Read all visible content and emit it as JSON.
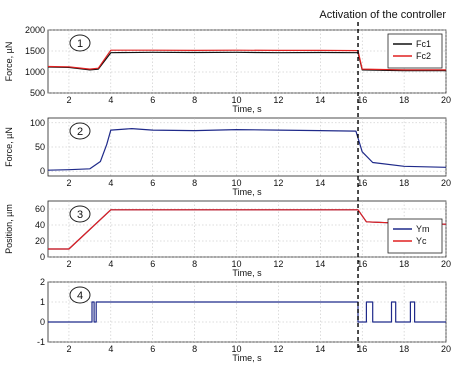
{
  "annotation": "Activation of the controller",
  "marker_color": "#000000",
  "chart_data": [
    {
      "type": "line",
      "badge": "1",
      "ylabel": "Force, µN",
      "xlabel": "Time, s",
      "xlim": [
        1,
        20
      ],
      "ylim": [
        500,
        2000
      ],
      "xticks": [
        2,
        4,
        6,
        8,
        10,
        12,
        14,
        16,
        18,
        20
      ],
      "yticks": [
        500,
        1000,
        1500,
        2000
      ],
      "grid": true,
      "legend": "top-right",
      "series": [
        {
          "name": "Fc1",
          "color": "#111111",
          "x": [
            1,
            2,
            3,
            3.4,
            4,
            6,
            8,
            10,
            12,
            14,
            15.8,
            16,
            18,
            20
          ],
          "y": [
            1120,
            1110,
            1050,
            1070,
            1460,
            1470,
            1465,
            1470,
            1460,
            1465,
            1460,
            1050,
            1030,
            1030
          ]
        },
        {
          "name": "Fc2",
          "color": "#e02020",
          "x": [
            1,
            2,
            3,
            3.4,
            4,
            6,
            8,
            10,
            12,
            14,
            15.8,
            16,
            18,
            20
          ],
          "y": [
            1130,
            1125,
            1070,
            1090,
            1520,
            1520,
            1515,
            1520,
            1515,
            1515,
            1510,
            1070,
            1050,
            1050
          ]
        }
      ]
    },
    {
      "type": "line",
      "badge": "2",
      "ylabel": "Force, µN",
      "xlabel": "Time, s",
      "xlim": [
        1,
        20
      ],
      "ylim": [
        -10,
        110
      ],
      "xticks": [
        2,
        4,
        6,
        8,
        10,
        12,
        14,
        16,
        18,
        20
      ],
      "yticks": [
        0,
        50,
        100
      ],
      "grid": true,
      "series": [
        {
          "color": "#1f2a8a",
          "x": [
            1,
            2,
            3,
            3.5,
            3.8,
            4,
            5,
            6,
            8,
            10,
            12,
            14,
            15.7,
            16,
            16.5,
            18,
            20
          ],
          "y": [
            2,
            3,
            5,
            20,
            55,
            85,
            88,
            85,
            84,
            86,
            85,
            84,
            83,
            40,
            18,
            10,
            8
          ]
        }
      ]
    },
    {
      "type": "line",
      "badge": "3",
      "ylabel": "Position, µm",
      "xlabel": "Time, s",
      "xlim": [
        1,
        20
      ],
      "ylim": [
        0,
        70
      ],
      "xticks": [
        2,
        4,
        6,
        8,
        10,
        12,
        14,
        16,
        18,
        20
      ],
      "yticks": [
        0,
        20,
        40,
        60
      ],
      "grid": true,
      "legend": "bottom-right",
      "series": [
        {
          "name": "Ym",
          "color": "#1f2a8a",
          "x": [
            1,
            2,
            4,
            15.8,
            16.2,
            18,
            20
          ],
          "y": [
            10,
            10,
            59,
            59,
            44,
            42,
            41
          ]
        },
        {
          "name": "Yc",
          "color": "#e02020",
          "x": [
            1,
            2,
            4,
            15.8,
            16.2,
            18,
            20
          ],
          "y": [
            10,
            10,
            59,
            59,
            44,
            42,
            41
          ]
        }
      ]
    },
    {
      "type": "line",
      "badge": "4",
      "ylabel": "",
      "xlabel": "Time, s",
      "xlim": [
        1,
        20
      ],
      "ylim": [
        -1,
        2
      ],
      "xticks": [
        2,
        4,
        6,
        8,
        10,
        12,
        14,
        16,
        18,
        20
      ],
      "yticks": [
        -1,
        0,
        1,
        2
      ],
      "grid": true,
      "series": [
        {
          "color": "#1f2a8a",
          "x": [
            1,
            3.1,
            3.1,
            3.2,
            3.2,
            3.3,
            3.3,
            3.4,
            3.4,
            15.8,
            15.8,
            16.2,
            16.2,
            16.5,
            16.5,
            17.4,
            17.4,
            17.6,
            17.6,
            18.3,
            18.3,
            18.5,
            18.5,
            20
          ],
          "y": [
            0,
            0,
            1,
            1,
            0,
            0,
            1,
            1,
            1,
            1,
            0,
            0,
            1,
            1,
            0,
            0,
            1,
            1,
            0,
            0,
            1,
            1,
            0,
            0
          ]
        }
      ]
    }
  ]
}
